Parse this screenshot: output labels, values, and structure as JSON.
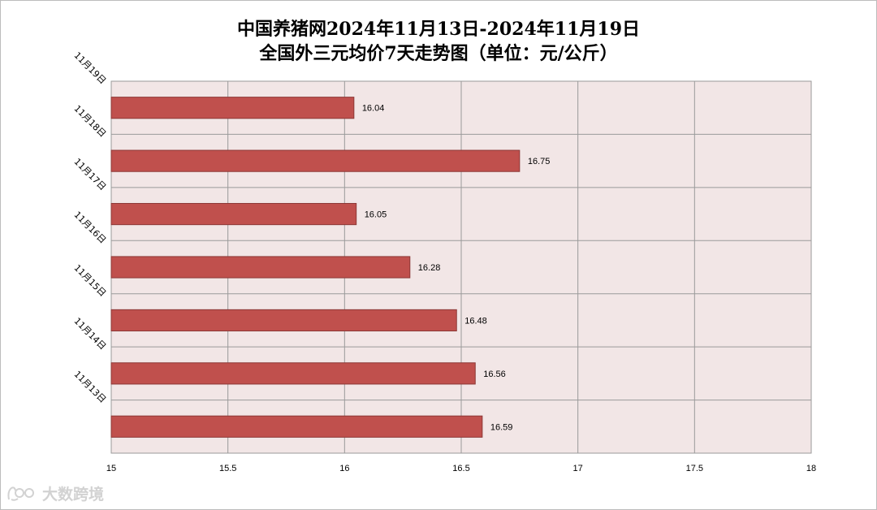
{
  "chart_data": {
    "type": "bar",
    "orientation": "horizontal",
    "title": "中国养猪网2024年11月13日-2024年11月19日",
    "subtitle": "全国外三元均价7天走势图（单位：元/公斤）",
    "categories": [
      "11月19日",
      "11月18日",
      "11月17日",
      "11月16日",
      "11月15日",
      "11月14日",
      "11月13日"
    ],
    "values": [
      16.04,
      16.75,
      16.05,
      16.28,
      16.48,
      16.56,
      16.59
    ],
    "data_labels": [
      "16.04",
      "16.75",
      "16.05",
      "16.28",
      "16.48",
      "16.56",
      "16.59"
    ],
    "xlim": [
      15,
      18
    ],
    "x_ticks": [
      15,
      15.5,
      16,
      16.5,
      17,
      17.5,
      18
    ],
    "x_tick_labels": [
      "15",
      "15.5",
      "16",
      "16.5",
      "17",
      "17.5",
      "18"
    ],
    "grid": true,
    "legend": "none",
    "colors": {
      "bar_fill": "#C0504D",
      "bar_edge": "#8C3836",
      "plot_background": "#F2E6E6",
      "grid": "#9A9A9A"
    }
  },
  "watermark": {
    "icon": "bilibili-style-logo-icon",
    "text": "大数跨境"
  }
}
